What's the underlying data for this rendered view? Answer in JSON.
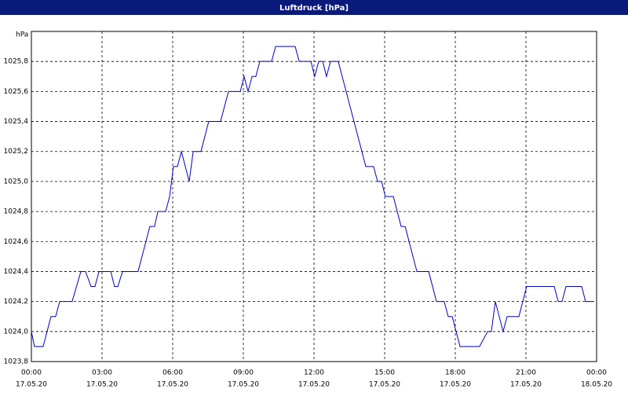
{
  "chart_data": {
    "type": "line",
    "title": "Luftdruck [hPa]",
    "ylabel": "hPa",
    "x": [
      0,
      0.13,
      0.5,
      0.83,
      1.03,
      1.2,
      1.73,
      2.1,
      2.3,
      2.53,
      2.7,
      2.87,
      3.37,
      3.53,
      3.67,
      3.87,
      4.53,
      5.03,
      5.23,
      5.37,
      5.7,
      5.87,
      6.03,
      6.2,
      6.37,
      6.7,
      6.87,
      7.2,
      7.53,
      8.03,
      8.37,
      8.87,
      9.03,
      9.2,
      9.37,
      9.53,
      9.7,
      10.2,
      10.37,
      11.2,
      11.37,
      11.87,
      12.03,
      12.2,
      12.37,
      12.53,
      12.7,
      13.03,
      14.2,
      14.53,
      14.7,
      14.87,
      15.03,
      15.37,
      15.7,
      15.87,
      16.37,
      16.87,
      17.2,
      17.53,
      17.7,
      17.87,
      18.2,
      19.03,
      19.37,
      19.53,
      19.7,
      20.03,
      20.2,
      20.7,
      21.03,
      22.2,
      22.37,
      22.53,
      22.7,
      23.37,
      23.53,
      23.87
    ],
    "series": [
      {
        "name": "Luftdruck",
        "color": "#0000c0",
        "values": [
          1024.0,
          1023.9,
          1023.9,
          1024.1,
          1024.1,
          1024.2,
          1024.2,
          1024.4,
          1024.4,
          1024.3,
          1024.3,
          1024.4,
          1024.4,
          1024.3,
          1024.3,
          1024.4,
          1024.4,
          1024.7,
          1024.7,
          1024.8,
          1024.8,
          1024.9,
          1025.1,
          1025.1,
          1025.2,
          1025.0,
          1025.2,
          1025.2,
          1025.4,
          1025.4,
          1025.6,
          1025.6,
          1025.7,
          1025.6,
          1025.7,
          1025.7,
          1025.8,
          1025.8,
          1025.9,
          1025.9,
          1025.8,
          1025.8,
          1025.7,
          1025.8,
          1025.8,
          1025.7,
          1025.8,
          1025.8,
          1025.1,
          1025.1,
          1025.0,
          1025.0,
          1024.9,
          1024.9,
          1024.7,
          1024.7,
          1024.4,
          1024.4,
          1024.2,
          1024.2,
          1024.1,
          1024.1,
          1023.9,
          1023.9,
          1024.0,
          1024.0,
          1024.2,
          1024.0,
          1024.1,
          1024.1,
          1024.3,
          1024.3,
          1024.2,
          1024.2,
          1024.3,
          1024.3,
          1024.2,
          1024.2
        ]
      }
    ],
    "xlim": [
      0,
      24
    ],
    "ylim": [
      1023.8,
      1026.0
    ],
    "xticks": [
      {
        "value": 0,
        "label": "00:00",
        "date": "17.05.20"
      },
      {
        "value": 3,
        "label": "03:00",
        "date": "17.05.20"
      },
      {
        "value": 6,
        "label": "06:00",
        "date": "17.05.20"
      },
      {
        "value": 9,
        "label": "09:00",
        "date": "17.05.20"
      },
      {
        "value": 12,
        "label": "12:00",
        "date": "17.05.20"
      },
      {
        "value": 15,
        "label": "15:00",
        "date": "17.05.20"
      },
      {
        "value": 18,
        "label": "18:00",
        "date": "17.05.20"
      },
      {
        "value": 21,
        "label": "21:00",
        "date": "17.05.20"
      },
      {
        "value": 24,
        "label": "00:00",
        "date": "18.05.20"
      }
    ],
    "yticks": [
      {
        "value": 1023.8,
        "label": "1023,8"
      },
      {
        "value": 1024.0,
        "label": "1024,0"
      },
      {
        "value": 1024.2,
        "label": "1024,2"
      },
      {
        "value": 1024.4,
        "label": "1024,4"
      },
      {
        "value": 1024.6,
        "label": "1024,6"
      },
      {
        "value": 1024.8,
        "label": "1024,8"
      },
      {
        "value": 1025.0,
        "label": "1025,0"
      },
      {
        "value": 1025.2,
        "label": "1025,2"
      },
      {
        "value": 1025.4,
        "label": "1025,4"
      },
      {
        "value": 1025.6,
        "label": "1025,6"
      },
      {
        "value": 1025.8,
        "label": "1025,8"
      }
    ],
    "grid": true
  }
}
